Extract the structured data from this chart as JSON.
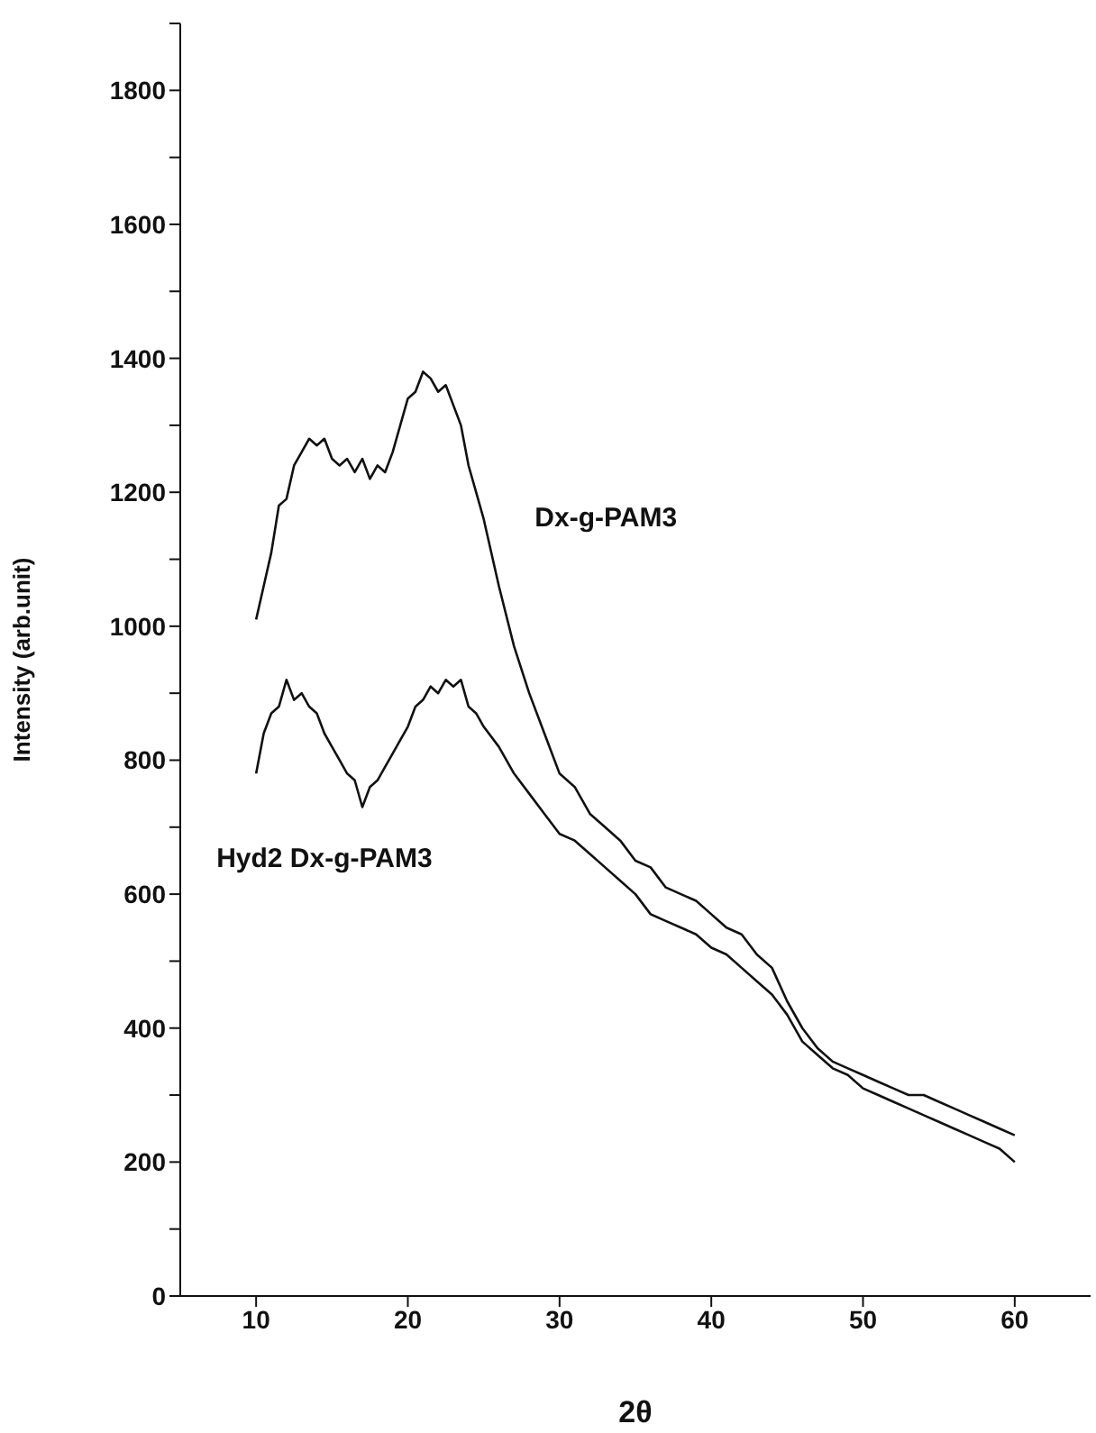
{
  "chart_data": {
    "type": "line",
    "xlabel": "2θ",
    "ylabel": "Intensity (arb.unit)",
    "xlim": [
      5,
      65
    ],
    "xticks": [
      10,
      20,
      30,
      40,
      50,
      60
    ],
    "ylim": [
      0,
      1900
    ],
    "yticks": [
      0,
      {
        "value": 100,
        "label": null
      },
      200,
      {
        "value": 300,
        "label": null
      },
      400,
      {
        "value": 500,
        "label": null
      },
      600,
      {
        "value": 700,
        "label": null
      },
      800,
      {
        "value": 900,
        "label": null
      },
      1000,
      {
        "value": 1100,
        "label": null
      },
      1200,
      {
        "value": 1300,
        "label": null
      },
      1400,
      {
        "value": 1500,
        "label": null
      },
      1600,
      {
        "value": 1700,
        "label": null
      },
      1800,
      {
        "value": 1900,
        "label": null
      }
    ],
    "grid": false,
    "legend": false,
    "marker": "none",
    "line_style": "solid",
    "x": [
      10,
      10.5,
      11,
      11.5,
      12,
      12.5,
      13,
      13.5,
      14,
      14.5,
      15,
      15.5,
      16,
      16.5,
      17,
      17.5,
      18,
      18.5,
      19,
      19.5,
      20,
      20.5,
      21,
      21.5,
      22,
      22.5,
      23,
      23.5,
      24,
      24.5,
      25,
      26,
      27,
      28,
      29,
      30,
      31,
      32,
      33,
      34,
      35,
      36,
      37,
      38,
      39,
      40,
      41,
      42,
      43,
      44,
      45,
      46,
      47,
      48,
      49,
      50,
      51,
      52,
      53,
      54,
      55,
      56,
      57,
      58,
      59,
      60
    ],
    "series": [
      {
        "name": "Dx-g-PAM3",
        "color": "#111111",
        "values": [
          1010,
          1060,
          1110,
          1180,
          1190,
          1240,
          1260,
          1280,
          1270,
          1280,
          1250,
          1240,
          1250,
          1230,
          1250,
          1220,
          1240,
          1230,
          1260,
          1300,
          1340,
          1350,
          1380,
          1370,
          1350,
          1360,
          1330,
          1300,
          1240,
          1200,
          1160,
          1060,
          970,
          900,
          840,
          780,
          760,
          720,
          700,
          680,
          650,
          640,
          610,
          600,
          590,
          570,
          550,
          540,
          510,
          490,
          440,
          400,
          370,
          350,
          340,
          330,
          320,
          310,
          300,
          300,
          290,
          280,
          270,
          260,
          250,
          240
        ]
      },
      {
        "name": "Hyd2 Dx-g-PAM3",
        "color": "#111111",
        "values": [
          780,
          840,
          870,
          880,
          920,
          890,
          900,
          880,
          870,
          840,
          820,
          800,
          780,
          770,
          730,
          760,
          770,
          790,
          810,
          830,
          850,
          880,
          890,
          910,
          900,
          920,
          910,
          920,
          880,
          870,
          850,
          820,
          780,
          750,
          720,
          690,
          680,
          660,
          640,
          620,
          600,
          570,
          560,
          550,
          540,
          520,
          510,
          490,
          470,
          450,
          420,
          380,
          360,
          340,
          330,
          310,
          300,
          290,
          280,
          270,
          260,
          250,
          240,
          230,
          220,
          200
        ]
      }
    ]
  }
}
